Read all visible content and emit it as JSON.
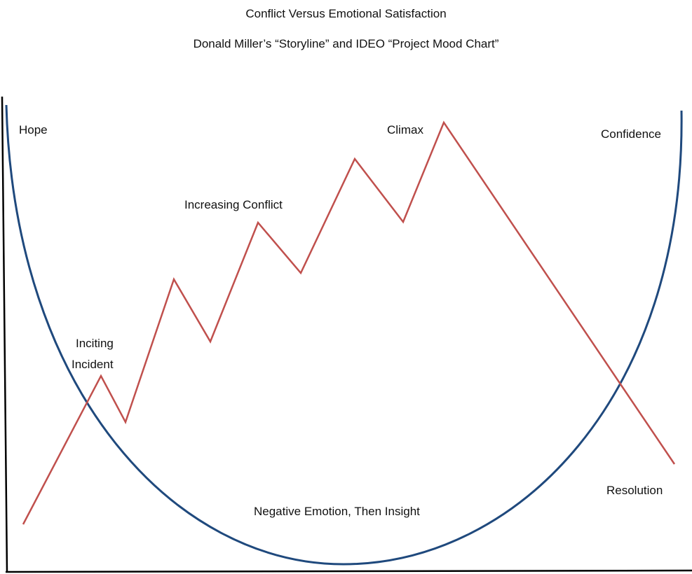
{
  "title": "Conflict Versus Emotional Satisfaction",
  "subtitle": "Donald Miller’s “Storyline” and IDEO “Project Mood Chart”",
  "labels": {
    "hope": "Hope",
    "confidence": "Confidence",
    "climax": "Climax",
    "increasing_conflict": "Increasing Conflict",
    "inciting_line1": "Inciting",
    "inciting_line2": "Incident",
    "negative_emotion": "Negative Emotion, Then Insight",
    "resolution": "Resolution"
  },
  "colors": {
    "conflict_line": "#c0504d",
    "emotion_curve": "#1f497d",
    "axes": "#000000"
  },
  "chart_data": {
    "type": "line",
    "series": [
      {
        "name": "",
        "description_hidden": false
      }
    ]
  }
}
